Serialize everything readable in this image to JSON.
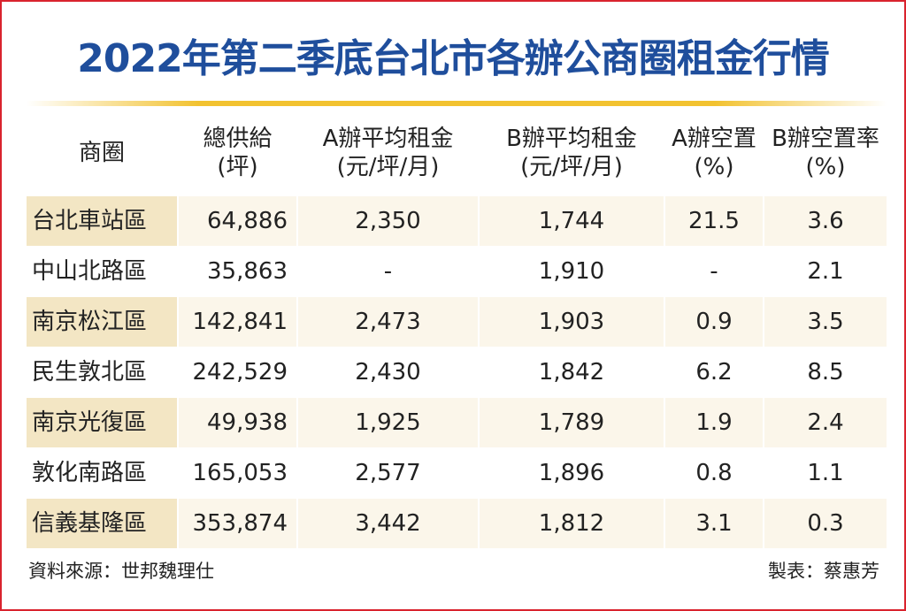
{
  "header": {
    "title": "2022年第二季底台北市各辦公商圈租金行情"
  },
  "table": {
    "columns": [
      [
        "商圈"
      ],
      [
        "總供給",
        "(坪)"
      ],
      [
        "A辦平均租金",
        "(元/坪/月)"
      ],
      [
        "B辦平均租金",
        "(元/坪/月)"
      ],
      [
        "A辦空置",
        "(%)"
      ],
      [
        "B辦空置率",
        "(%)"
      ]
    ],
    "rows": [
      [
        "台北車站區",
        "64,886",
        "2,350",
        "1,744",
        "21.5",
        "3.6"
      ],
      [
        "中山北路區",
        "35,863",
        "-",
        "1,910",
        "-",
        "2.1"
      ],
      [
        "南京松江區",
        "142,841",
        "2,473",
        "1,903",
        "0.9",
        "3.5"
      ],
      [
        "民生敦北區",
        "242,529",
        "2,430",
        "1,842",
        "6.2",
        "8.5"
      ],
      [
        "南京光復區",
        "49,938",
        "1,925",
        "1,789",
        "1.9",
        "2.4"
      ],
      [
        "敦化南路區",
        "165,053",
        "2,577",
        "1,896",
        "0.8",
        "1.1"
      ],
      [
        "信義基隆區",
        "353,874",
        "3,442",
        "1,812",
        "3.1",
        "0.3"
      ]
    ]
  },
  "footer": {
    "source": "資料來源：世邦魏理仕",
    "credit": "製表：蔡惠芳"
  }
}
